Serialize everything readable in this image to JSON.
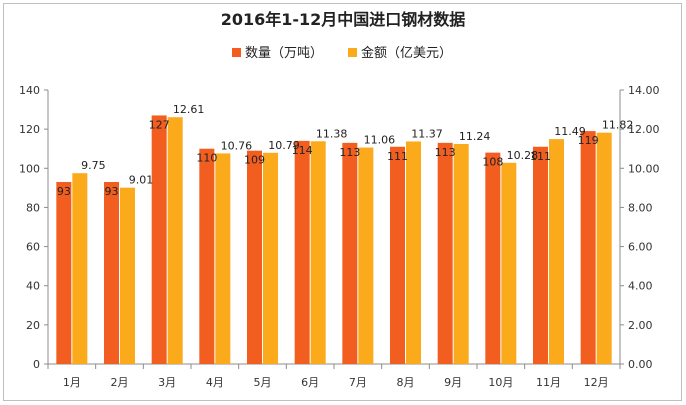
{
  "chart_data": {
    "type": "bar",
    "title": "2016年1-12月中国进口钢材数据",
    "categories": [
      "1月",
      "2月",
      "3月",
      "4月",
      "5月",
      "6月",
      "7月",
      "8月",
      "9月",
      "10月",
      "11月",
      "12月"
    ],
    "series": [
      {
        "name": "数量（万吨）",
        "axis": "left",
        "color": "#f25d20",
        "values": [
          93,
          93,
          127,
          110,
          109,
          114,
          113,
          111,
          113,
          108,
          111,
          119
        ],
        "labels": [
          "93",
          "93",
          "127",
          "110",
          "109",
          "114",
          "113",
          "111",
          "113",
          "108",
          "111",
          "119"
        ]
      },
      {
        "name": "金额（亿美元）",
        "axis": "right",
        "color": "#fbaa1c",
        "values": [
          9.75,
          9.01,
          12.61,
          10.76,
          10.79,
          11.38,
          11.06,
          11.37,
          11.24,
          10.28,
          11.49,
          11.82
        ],
        "labels": [
          "9.75",
          "9.01",
          "12.61",
          "10.76",
          "10.79",
          "11.38",
          "11.06",
          "11.37",
          "11.24",
          "10.28",
          "11.49",
          "11.82"
        ]
      }
    ],
    "y_left": {
      "min": 0,
      "max": 140,
      "ticks": [
        "0",
        "20",
        "40",
        "60",
        "80",
        "100",
        "120",
        "140"
      ]
    },
    "y_right": {
      "min": 0,
      "max": 14,
      "ticks": [
        "0.00",
        "2.00",
        "4.00",
        "6.00",
        "8.00",
        "10.00",
        "12.00",
        "14.00"
      ]
    },
    "legend_position": "top-center",
    "grid": false
  }
}
